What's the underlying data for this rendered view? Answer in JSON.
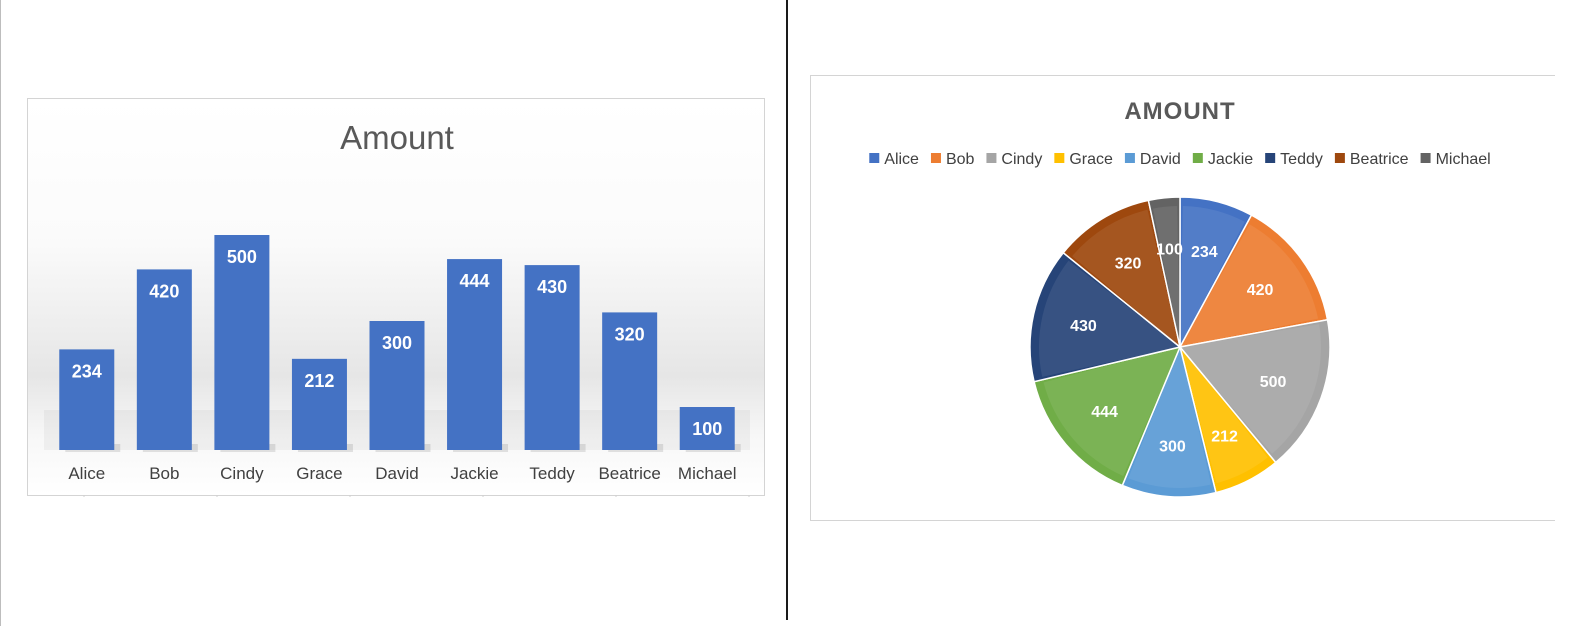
{
  "chart_data": [
    {
      "type": "bar",
      "title": "Amount",
      "categories": [
        "Alice",
        "Bob",
        "Cindy",
        "Grace",
        "David",
        "Jackie",
        "Teddy",
        "Beatrice",
        "Michael"
      ],
      "values": [
        234,
        420,
        500,
        212,
        300,
        444,
        430,
        320,
        100
      ],
      "data_labels": true,
      "grid": false,
      "legend": "none",
      "ylim": [
        0,
        600
      ],
      "color": "#4472C4"
    },
    {
      "type": "pie",
      "title": "AMOUNT",
      "categories": [
        "Alice",
        "Bob",
        "Cindy",
        "Grace",
        "David",
        "Jackie",
        "Teddy",
        "Beatrice",
        "Michael"
      ],
      "values": [
        234,
        420,
        500,
        212,
        300,
        444,
        430,
        320,
        100
      ],
      "colors": [
        "#4472C4",
        "#ED7D31",
        "#A5A5A5",
        "#FFC000",
        "#5B9BD5",
        "#70AD47",
        "#264478",
        "#9E480E",
        "#636363"
      ],
      "data_labels": true,
      "legend": "top"
    }
  ]
}
